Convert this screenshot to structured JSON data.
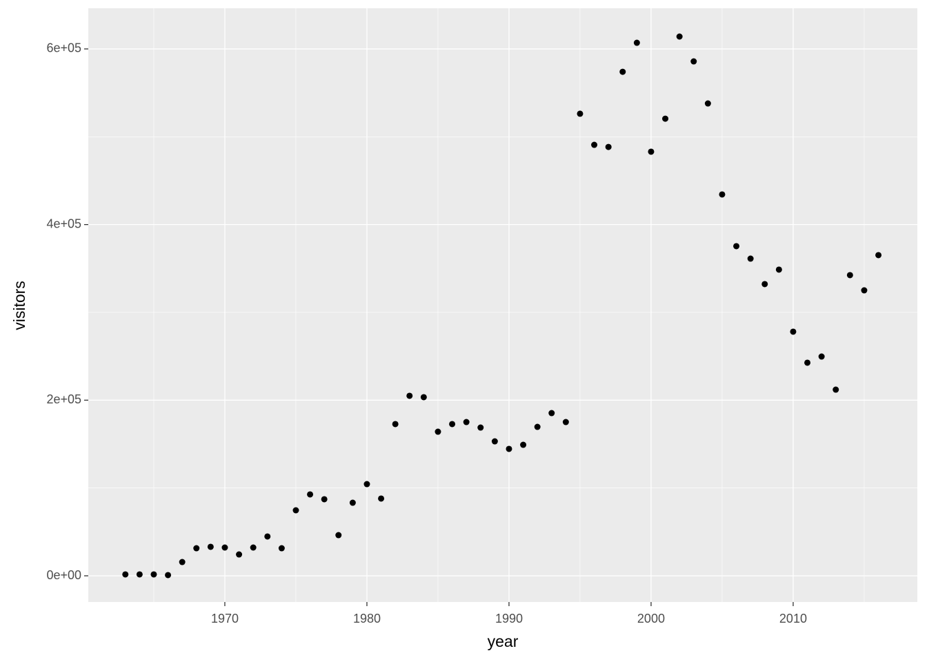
{
  "chart_data": {
    "type": "scatter",
    "x_label": "year",
    "y_label": "visitors",
    "series": [
      {
        "color": "#000000",
        "x": [
          1963,
          1964,
          1965,
          1966,
          1967,
          1968,
          1969,
          1970,
          1971,
          1972,
          1973,
          1974,
          1975,
          1976,
          1977,
          1978,
          1979,
          1980,
          1981,
          1982,
          1983,
          1984,
          1985,
          1986,
          1987,
          1988,
          1989,
          1990,
          1991,
          1992,
          1993,
          1994,
          1995,
          1996,
          1997,
          1998,
          1999,
          2000,
          2001,
          2002,
          2003,
          2004,
          2005,
          2006,
          2007,
          2008,
          2009,
          2010,
          2011,
          2012,
          2013,
          2014,
          2015,
          2016
        ],
        "values": [
          1600,
          1600,
          1600,
          800,
          15700,
          31400,
          33000,
          32200,
          24300,
          32200,
          44800,
          31400,
          74600,
          92700,
          87200,
          46300,
          83200,
          104400,
          88000,
          172800,
          205000,
          203400,
          164100,
          172800,
          175100,
          168800,
          153100,
          144500,
          149200,
          169600,
          185300,
          175100,
          526200,
          490800,
          488400,
          574000,
          607000,
          483000,
          520600,
          614100,
          585800,
          537900,
          434300,
          375400,
          361200,
          332200,
          348700,
          278000,
          242700,
          249700,
          212000,
          342400,
          325100,
          365200
        ]
      }
    ],
    "xlim": [
      1960.39,
      2018.74
    ],
    "ylim": [
      -29841,
      646300
    ],
    "xticks": [
      1970,
      1980,
      1990,
      2000,
      2010
    ],
    "yticks": [
      {
        "value": 0,
        "label": "0e+00"
      },
      {
        "value": 200000,
        "label": "2e+05"
      },
      {
        "value": 400000,
        "label": "4e+05"
      },
      {
        "value": 600000,
        "label": "6e+05"
      }
    ],
    "grid": true,
    "panel_color": "#EBEBEB"
  }
}
